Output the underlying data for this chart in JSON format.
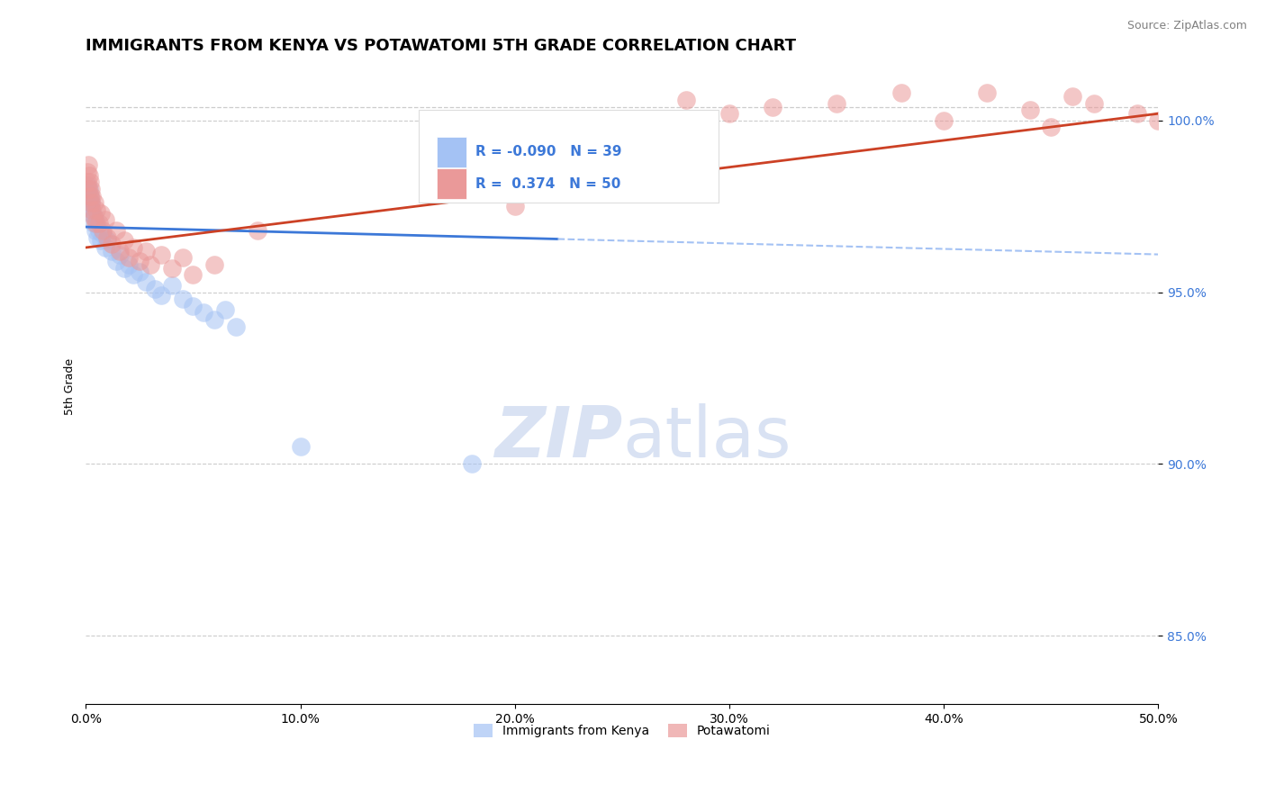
{
  "title": "IMMIGRANTS FROM KENYA VS POTAWATOMI 5TH GRADE CORRELATION CHART",
  "source_text": "Source: ZipAtlas.com",
  "ylabel": "5th Grade",
  "xlim": [
    0.0,
    50.0
  ],
  "ylim": [
    83.0,
    101.5
  ],
  "xticklabels": [
    "0.0%",
    "10.0%",
    "20.0%",
    "30.0%",
    "40.0%",
    "50.0%"
  ],
  "xtick_positions": [
    0,
    10,
    20,
    30,
    40,
    50
  ],
  "ytick_positions": [
    85.0,
    90.0,
    95.0,
    100.0
  ],
  "ytick_labels": [
    "85.0%",
    "90.0%",
    "95.0%",
    "100.0%"
  ],
  "r1": -0.09,
  "n1": 39,
  "r2": 0.374,
  "n2": 50,
  "blue_color": "#a4c2f4",
  "pink_color": "#ea9999",
  "blue_line_color": "#3c78d8",
  "pink_line_color": "#cc4125",
  "blue_line_dashed_color": "#a4c2f4",
  "watermark_color": "#d9e2f3",
  "background_color": "#ffffff",
  "grid_color": "#cccccc",
  "title_fontsize": 13,
  "axis_label_fontsize": 9,
  "blue_dots": [
    [
      0.05,
      97.9
    ],
    [
      0.08,
      98.1
    ],
    [
      0.1,
      97.7
    ],
    [
      0.12,
      97.5
    ],
    [
      0.15,
      98.0
    ],
    [
      0.18,
      97.6
    ],
    [
      0.2,
      97.8
    ],
    [
      0.22,
      97.4
    ],
    [
      0.25,
      97.6
    ],
    [
      0.3,
      97.3
    ],
    [
      0.35,
      97.0
    ],
    [
      0.4,
      97.2
    ],
    [
      0.45,
      96.8
    ],
    [
      0.5,
      97.0
    ],
    [
      0.55,
      96.6
    ],
    [
      0.6,
      96.8
    ],
    [
      0.7,
      96.5
    ],
    [
      0.8,
      96.7
    ],
    [
      0.9,
      96.3
    ],
    [
      1.0,
      96.5
    ],
    [
      1.2,
      96.2
    ],
    [
      1.4,
      95.9
    ],
    [
      1.6,
      96.1
    ],
    [
      1.8,
      95.7
    ],
    [
      2.0,
      95.8
    ],
    [
      2.2,
      95.5
    ],
    [
      2.5,
      95.6
    ],
    [
      2.8,
      95.3
    ],
    [
      3.2,
      95.1
    ],
    [
      3.5,
      94.9
    ],
    [
      4.0,
      95.2
    ],
    [
      4.5,
      94.8
    ],
    [
      5.0,
      94.6
    ],
    [
      5.5,
      94.4
    ],
    [
      6.0,
      94.2
    ],
    [
      6.5,
      94.5
    ],
    [
      7.0,
      94.0
    ],
    [
      10.0,
      90.5
    ],
    [
      18.0,
      90.0
    ]
  ],
  "pink_dots": [
    [
      0.05,
      98.5
    ],
    [
      0.08,
      98.2
    ],
    [
      0.1,
      98.7
    ],
    [
      0.12,
      98.0
    ],
    [
      0.15,
      98.4
    ],
    [
      0.18,
      97.8
    ],
    [
      0.2,
      98.2
    ],
    [
      0.22,
      97.6
    ],
    [
      0.25,
      98.0
    ],
    [
      0.28,
      97.4
    ],
    [
      0.3,
      97.8
    ],
    [
      0.35,
      97.2
    ],
    [
      0.4,
      97.6
    ],
    [
      0.45,
      97.0
    ],
    [
      0.5,
      97.4
    ],
    [
      0.6,
      97.0
    ],
    [
      0.7,
      97.3
    ],
    [
      0.8,
      96.8
    ],
    [
      0.9,
      97.1
    ],
    [
      1.0,
      96.6
    ],
    [
      1.2,
      96.4
    ],
    [
      1.4,
      96.8
    ],
    [
      1.6,
      96.2
    ],
    [
      1.8,
      96.5
    ],
    [
      2.0,
      96.0
    ],
    [
      2.2,
      96.3
    ],
    [
      2.5,
      95.9
    ],
    [
      2.8,
      96.2
    ],
    [
      3.0,
      95.8
    ],
    [
      3.5,
      96.1
    ],
    [
      4.0,
      95.7
    ],
    [
      4.5,
      96.0
    ],
    [
      5.0,
      95.5
    ],
    [
      6.0,
      95.8
    ],
    [
      8.0,
      96.8
    ],
    [
      20.0,
      97.5
    ],
    [
      25.0,
      99.5
    ],
    [
      30.0,
      100.2
    ],
    [
      35.0,
      100.5
    ],
    [
      40.0,
      100.0
    ],
    [
      42.0,
      100.8
    ],
    [
      45.0,
      99.8
    ],
    [
      47.0,
      100.5
    ],
    [
      49.0,
      100.2
    ],
    [
      50.0,
      100.0
    ],
    [
      28.0,
      100.6
    ],
    [
      32.0,
      100.4
    ],
    [
      38.0,
      100.8
    ],
    [
      44.0,
      100.3
    ],
    [
      46.0,
      100.7
    ]
  ],
  "blue_trend": [
    0.0,
    96.9,
    50.0,
    96.1
  ],
  "pink_trend": [
    0.0,
    96.3,
    50.0,
    100.2
  ],
  "blue_solid_end_x": 22.0,
  "dashed_top_y": 100.4
}
